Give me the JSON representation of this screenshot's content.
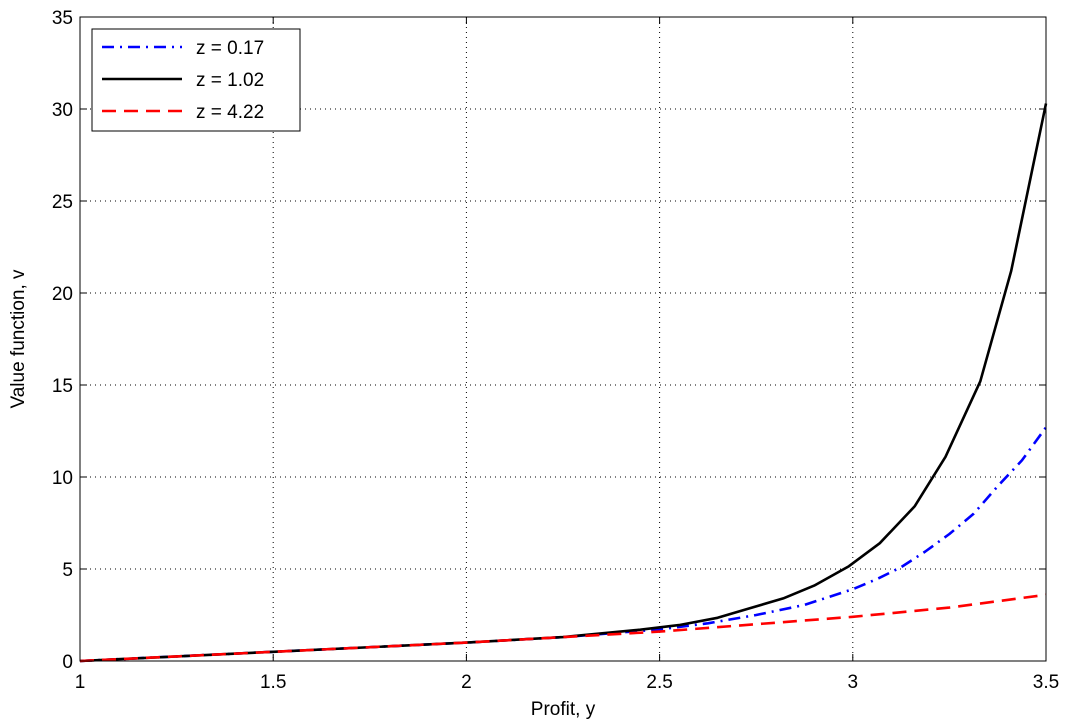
{
  "chart_data": {
    "type": "line",
    "title": "",
    "xlabel": "Profit, y",
    "ylabel": "Value function, v",
    "xlim": [
      1,
      3.5
    ],
    "ylim": [
      0,
      35
    ],
    "xticks": [
      1,
      1.5,
      2,
      2.5,
      3,
      3.5
    ],
    "yticks": [
      0,
      5,
      10,
      15,
      20,
      25,
      30,
      35
    ],
    "xtick_labels": [
      "1",
      "1.5",
      "2",
      "2.5",
      "3",
      "3.5"
    ],
    "ytick_labels": [
      "0",
      "5",
      "10",
      "15",
      "20",
      "25",
      "30",
      "35"
    ],
    "grid": true,
    "legend_position": "top-left",
    "series": [
      {
        "name": "z = 0.17",
        "color": "#0000ff",
        "dash": "dash-dot",
        "x": [
          1.0,
          1.5,
          2.0,
          2.25,
          2.5,
          2.625,
          2.75,
          2.875,
          3.0,
          3.0625,
          3.125,
          3.1875,
          3.25,
          3.3125,
          3.375,
          3.4375,
          3.5
        ],
        "y": [
          0.0,
          0.5,
          1.0,
          1.3,
          1.72,
          2.05,
          2.5,
          3.05,
          3.9,
          4.45,
          5.1,
          5.95,
          6.9,
          8.0,
          9.5,
          10.9,
          12.7
        ]
      },
      {
        "name": "z = 1.02",
        "color": "#000000",
        "dash": "solid",
        "x": [
          1.0,
          1.5,
          2.0,
          2.25,
          2.45,
          2.55,
          2.65,
          2.73,
          2.82,
          2.9,
          2.99,
          3.07,
          3.16,
          3.24,
          3.33,
          3.41,
          3.5
        ],
        "y": [
          0.0,
          0.5,
          1.0,
          1.3,
          1.7,
          1.95,
          2.35,
          2.85,
          3.4,
          4.1,
          5.15,
          6.4,
          8.4,
          11.1,
          15.2,
          21.2,
          30.3
        ]
      },
      {
        "name": "z = 4.22",
        "color": "#ff0000",
        "dash": "dashed",
        "x": [
          1.0,
          1.5,
          2.0,
          2.25,
          2.5,
          2.75,
          3.0,
          3.25,
          3.5
        ],
        "y": [
          0.0,
          0.5,
          1.0,
          1.3,
          1.6,
          2.0,
          2.4,
          2.9,
          3.6
        ]
      }
    ]
  }
}
